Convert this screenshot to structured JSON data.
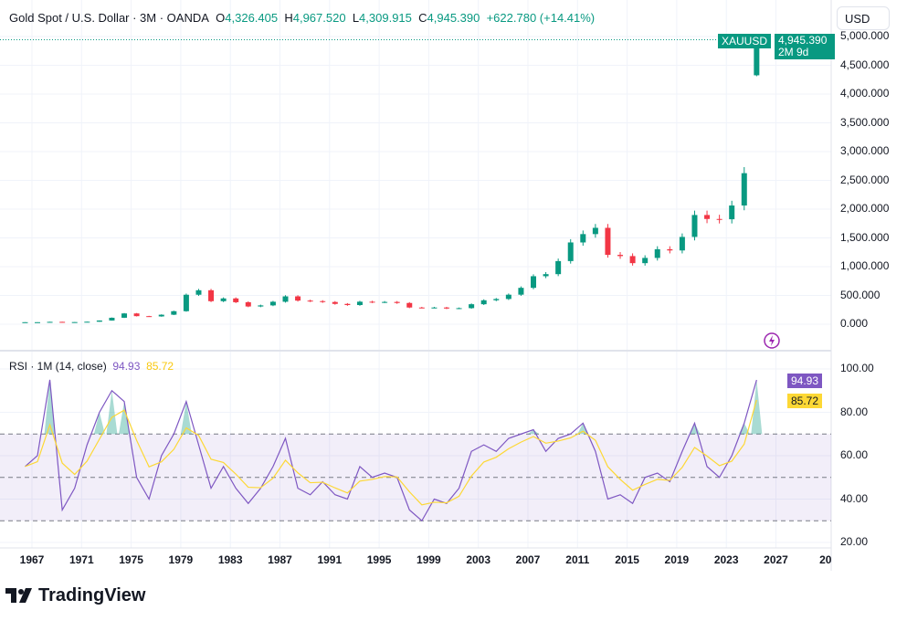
{
  "header": {
    "title": "Gold Spot / U.S. Dollar · 3M · OANDA",
    "open_label": "O",
    "open": "4,326.405",
    "high_label": "H",
    "high": "4,967.520",
    "low_label": "L",
    "low": "4,309.915",
    "close_label": "C",
    "close": "4,945.390",
    "change": "+622.780 (+14.41%)"
  },
  "currency_button": "USD",
  "price_tag": {
    "symbol": "XAUUSD",
    "price": "4,945.390",
    "countdown": "2M 9d"
  },
  "rsi_legend": {
    "title": "RSI · 1M (14, close)",
    "rsi": "94.93",
    "ma": "85.72"
  },
  "brand": "TradingView",
  "colors": {
    "up": "#089981",
    "down": "#f23645",
    "rsi": "#7e57c2",
    "rsi_ma": "#fdd835"
  },
  "icons": [
    "lightning-icon",
    "tradingview-logo-icon"
  ],
  "chart_data": [
    {
      "type": "candlestick",
      "series_name": "XAUUSD",
      "price_axis_ticks": [
        "0.000",
        "500.000",
        "1,000.000",
        "1,500.000",
        "2,000.000",
        "2,500.000",
        "3,000.000",
        "3,500.000",
        "4,000.000",
        "4,500.000",
        "5,000.000"
      ],
      "ylim": [
        -250,
        5300
      ],
      "years": [
        1966,
        1967,
        1968,
        1969,
        1970,
        1971,
        1972,
        1973,
        1974,
        1975,
        1976,
        1977,
        1978,
        1979,
        1980,
        1981,
        1982,
        1983,
        1984,
        1985,
        1986,
        1987,
        1988,
        1989,
        1990,
        1991,
        1992,
        1993,
        1994,
        1995,
        1996,
        1997,
        1998,
        1999,
        2000,
        2001,
        2002,
        2003,
        2004,
        2005,
        2006,
        2007,
        2008,
        2009,
        2010,
        2011,
        2012,
        2013,
        2014,
        2015,
        2016,
        2017,
        2018,
        2019,
        2020,
        2021,
        2022,
        2023,
        2024,
        2025
      ],
      "close": [
        35,
        35,
        41,
        35,
        37,
        43,
        64,
        112,
        187,
        140,
        135,
        165,
        226,
        512,
        590,
        400,
        448,
        382,
        308,
        327,
        390,
        484,
        410,
        401,
        386,
        353,
        333,
        391,
        383,
        387,
        369,
        290,
        288,
        290,
        273,
        279,
        347,
        416,
        438,
        513,
        632,
        834,
        870,
        1097,
        1421,
        1566,
        1675,
        1205,
        1184,
        1061,
        1152,
        1303,
        1282,
        1517,
        1898,
        1829,
        1824,
        2063,
        2625,
        4945.39
      ],
      "last_candle": {
        "open": 4326.405,
        "high": 4967.52,
        "low": 4309.915,
        "close": 4945.39
      }
    },
    {
      "type": "line",
      "title": "RSI · 1M (14, close)",
      "ylim": [
        15,
        105
      ],
      "rsi_axis_ticks": [
        "100.00",
        "80.00",
        "60.00",
        "40.00",
        "20.00"
      ],
      "bands": [
        30,
        50,
        70
      ],
      "years": [
        1966,
        1967,
        1968,
        1969,
        1970,
        1971,
        1972,
        1973,
        1974,
        1975,
        1976,
        1977,
        1978,
        1979,
        1980,
        1981,
        1982,
        1983,
        1984,
        1985,
        1986,
        1987,
        1988,
        1989,
        1990,
        1991,
        1992,
        1993,
        1994,
        1995,
        1996,
        1997,
        1998,
        1999,
        2000,
        2001,
        2002,
        2003,
        2004,
        2005,
        2006,
        2007,
        2008,
        2009,
        2010,
        2011,
        2012,
        2013,
        2014,
        2015,
        2016,
        2017,
        2018,
        2019,
        2020,
        2021,
        2022,
        2023,
        2024,
        2025
      ],
      "rsi": [
        55,
        60,
        95,
        35,
        45,
        65,
        80,
        90,
        85,
        50,
        40,
        60,
        70,
        85,
        65,
        45,
        55,
        45,
        38,
        45,
        55,
        68,
        45,
        42,
        48,
        42,
        40,
        55,
        50,
        52,
        50,
        35,
        30,
        40,
        38,
        45,
        62,
        65,
        62,
        68,
        70,
        72,
        62,
        68,
        70,
        75,
        62,
        40,
        42,
        38,
        50,
        52,
        48,
        62,
        75,
        55,
        50,
        60,
        75,
        94.93
      ],
      "rsi_ma_last": 85.72,
      "x_ticks": [
        "1967",
        "1971",
        "1975",
        "1979",
        "1983",
        "1987",
        "1991",
        "1995",
        "1999",
        "2003",
        "2007",
        "2011",
        "2015",
        "2019",
        "2023",
        "2027",
        "20"
      ]
    }
  ]
}
